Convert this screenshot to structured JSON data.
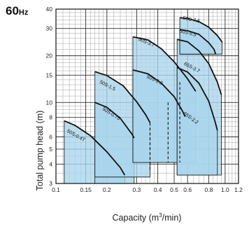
{
  "header": {
    "frequency_value": "60",
    "frequency_unit": "Hz"
  },
  "chart_data": {
    "type": "area",
    "xlabel_main": "Capacity (m",
    "xlabel_sup": "3",
    "xlabel_tail": "/min)",
    "ylabel": "Total pump head (m)",
    "x_scale": "log",
    "y_scale": "log",
    "xlim": [
      0.1,
      1.2
    ],
    "ylim": [
      3,
      40
    ],
    "grid": true,
    "x_ticks": [
      0.1,
      0.15,
      0.2,
      0.3,
      0.4,
      0.5,
      0.6,
      0.8,
      1.0,
      1.2
    ],
    "x_tick_labels": [
      "0.1",
      "0.15",
      "0.2",
      "0.3",
      "0.4",
      "0.5",
      "0.6",
      "0.8",
      "1.0",
      "1.2"
    ],
    "y_ticks": [
      3,
      4,
      5,
      6,
      8,
      10,
      15,
      20,
      30,
      40
    ],
    "y_tick_labels": [
      "3",
      "4",
      "5",
      "6",
      "8",
      "10",
      "15",
      "20",
      "30",
      "40"
    ],
    "fill_color": "#a9d5ec",
    "curve_color": "#111111",
    "series": [
      {
        "name": "50S-0.4T",
        "label_at": [
          0.13,
          6.0
        ],
        "region": [
          [
            0.112,
            3
          ],
          [
            0.112,
            7.6
          ],
          [
            0.13,
            7.1
          ],
          [
            0.16,
            6.1
          ],
          [
            0.2,
            4.8
          ],
          [
            0.24,
            3.8
          ],
          [
            0.255,
            3.4
          ],
          [
            0.255,
            3
          ]
        ],
        "curve": [
          [
            0.112,
            7.6
          ],
          [
            0.13,
            7.1
          ],
          [
            0.16,
            6.1
          ],
          [
            0.2,
            4.8
          ],
          [
            0.24,
            3.8
          ],
          [
            0.255,
            3.4
          ]
        ]
      },
      {
        "name": "50S-0.75",
        "label_at": [
          0.21,
          8.3
        ],
        "region": [
          [
            0.17,
            3
          ],
          [
            0.17,
            10
          ],
          [
            0.2,
            9.3
          ],
          [
            0.24,
            7.9
          ],
          [
            0.28,
            6.3
          ],
          [
            0.29,
            5.9
          ],
          [
            0.29,
            3
          ]
        ],
        "curve": [
          [
            0.17,
            10
          ],
          [
            0.2,
            9.3
          ],
          [
            0.24,
            7.9
          ],
          [
            0.28,
            6.3
          ],
          [
            0.29,
            5.9
          ]
        ]
      },
      {
        "name": "50S-1.5",
        "label_at": [
          0.2,
          12.6
        ],
        "region": [
          [
            0.17,
            3.3
          ],
          [
            0.17,
            15.8
          ],
          [
            0.2,
            14.9
          ],
          [
            0.25,
            12.8
          ],
          [
            0.3,
            10.1
          ],
          [
            0.34,
            8.3
          ],
          [
            0.36,
            7.4
          ],
          [
            0.36,
            3.3
          ]
        ],
        "curve": [
          [
            0.17,
            15.8
          ],
          [
            0.2,
            14.9
          ],
          [
            0.25,
            12.8
          ],
          [
            0.3,
            10.1
          ],
          [
            0.34,
            8.3
          ],
          [
            0.36,
            7.4
          ]
        ]
      },
      {
        "name": "50S-2.2",
        "label_at": [
          0.38,
          13.7
        ],
        "region": [
          [
            0.285,
            4.1
          ],
          [
            0.285,
            16.2
          ],
          [
            0.35,
            15.3
          ],
          [
            0.42,
            13.3
          ],
          [
            0.5,
            10.9
          ],
          [
            0.56,
            8.8
          ],
          [
            0.58,
            8.1
          ],
          [
            0.58,
            4.1
          ]
        ],
        "curve": [
          [
            0.285,
            16.2
          ],
          [
            0.35,
            15.3
          ],
          [
            0.42,
            13.3
          ],
          [
            0.5,
            10.9
          ],
          [
            0.56,
            8.8
          ],
          [
            0.58,
            8.1
          ]
        ]
      },
      {
        "name": "50S-3.7",
        "label_at": [
          0.34,
          24
        ],
        "region": [
          [
            0.285,
            4.1
          ],
          [
            0.285,
            26.5
          ],
          [
            0.35,
            25.3
          ],
          [
            0.42,
            22.2
          ],
          [
            0.5,
            18.3
          ],
          [
            0.6,
            14.2
          ],
          [
            0.67,
            11.8
          ],
          [
            0.67,
            4.1
          ]
        ],
        "curve": [
          [
            0.285,
            26.5
          ],
          [
            0.35,
            25.3
          ],
          [
            0.42,
            22.2
          ],
          [
            0.5,
            18.3
          ],
          [
            0.6,
            14.2
          ],
          [
            0.67,
            11.8
          ]
        ]
      },
      {
        "name": "65S-3.7",
        "label_at": [
          0.63,
          16.5
        ],
        "region": [
          [
            0.52,
            3.4
          ],
          [
            0.52,
            25.5
          ],
          [
            0.6,
            24.6
          ],
          [
            0.7,
            21.5
          ],
          [
            0.8,
            17.8
          ],
          [
            0.9,
            13.5
          ],
          [
            0.95,
            11.2
          ],
          [
            0.95,
            3.4
          ]
        ],
        "curve": [
          [
            0.52,
            25.5
          ],
          [
            0.6,
            24.6
          ],
          [
            0.7,
            21.5
          ],
          [
            0.8,
            17.8
          ],
          [
            0.9,
            13.5
          ],
          [
            0.95,
            11.2
          ]
        ]
      },
      {
        "name": "65S-2.2",
        "label_at": [
          0.62,
          7.8
        ],
        "region": [
          [
            0.52,
            3.4
          ],
          [
            0.52,
            16.8
          ],
          [
            0.6,
            15.7
          ],
          [
            0.7,
            13.3
          ],
          [
            0.8,
            10.2
          ],
          [
            0.87,
            7.6
          ],
          [
            0.9,
            6.6
          ],
          [
            0.9,
            3.4
          ]
        ],
        "curve": [
          [
            0.52,
            16.8
          ],
          [
            0.6,
            15.7
          ],
          [
            0.7,
            13.3
          ],
          [
            0.8,
            10.2
          ],
          [
            0.87,
            7.6
          ],
          [
            0.9,
            6.6
          ]
        ]
      },
      {
        "name": "50S-5.5",
        "label_at": [
          0.6,
          27.5
        ],
        "region": [
          [
            0.54,
            20.5
          ],
          [
            0.54,
            29.5
          ],
          [
            0.6,
            29
          ],
          [
            0.7,
            27.5
          ],
          [
            0.8,
            24.3
          ],
          [
            0.86,
            22
          ],
          [
            0.88,
            20.5
          ]
        ],
        "curve": [
          [
            0.54,
            29.5
          ],
          [
            0.6,
            29
          ],
          [
            0.7,
            27.5
          ],
          [
            0.8,
            24.3
          ],
          [
            0.86,
            22
          ],
          [
            0.88,
            20.5
          ]
        ]
      },
      {
        "name": "50S-7.5",
        "label_at": [
          0.63,
          33.5
        ],
        "region": [
          [
            0.54,
            20.5
          ],
          [
            0.54,
            35.2
          ],
          [
            0.6,
            34.8
          ],
          [
            0.7,
            33.2
          ],
          [
            0.8,
            30.6
          ],
          [
            0.9,
            27
          ],
          [
            0.96,
            24.5
          ],
          [
            0.96,
            20.5
          ]
        ],
        "curve": [
          [
            0.54,
            35.2
          ],
          [
            0.6,
            34.8
          ],
          [
            0.7,
            33.2
          ],
          [
            0.8,
            30.6
          ],
          [
            0.9,
            27
          ],
          [
            0.96,
            24.5
          ]
        ]
      }
    ],
    "dashed_lines": [
      [
        [
          0.36,
          7.4
        ],
        [
          0.36,
          3.6
        ]
      ],
      [
        [
          0.36,
          7.4
        ],
        [
          0.36,
          3.6
        ]
      ],
      [
        [
          0.46,
          10
        ],
        [
          0.46,
          4.1
        ]
      ],
      [
        [
          0.54,
          13.5
        ],
        [
          0.54,
          4.1
        ]
      ]
    ]
  }
}
